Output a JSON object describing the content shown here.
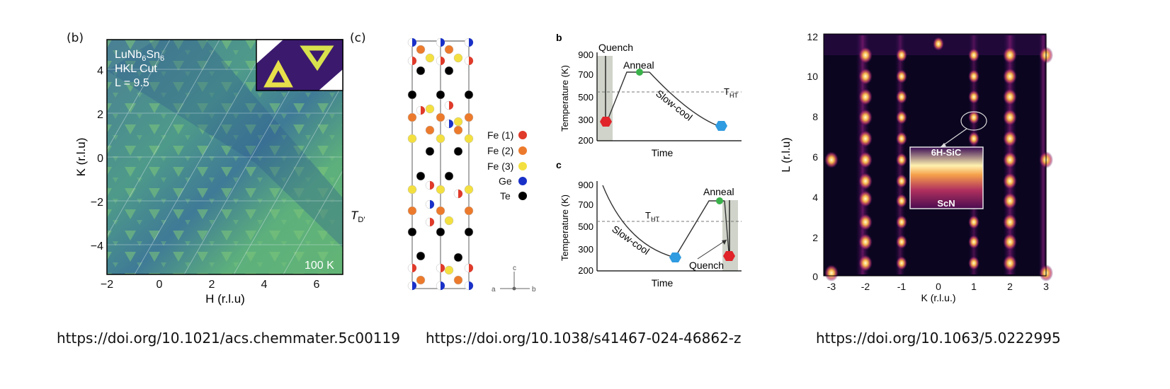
{
  "figure1": {
    "label": "(b)",
    "title_lines": [
      "LuNb6Sn6",
      "HKL Cut",
      "L = 9.5"
    ],
    "title_main": "LuNb",
    "title_sub1": "6",
    "title_mid": "Sn",
    "title_sub2": "6",
    "line2": "HKL Cut",
    "line3": "L = 9.5",
    "temperature": "100 K",
    "xlabel": "H (r.l.u)",
    "ylabel": "K (r.l.u)",
    "xticks": [
      "−2",
      "0",
      "2",
      "4",
      "6"
    ],
    "yticks": [
      "4",
      "2",
      "0",
      "−2",
      "−4"
    ],
    "side_label_main": "T",
    "side_label_sub": "D'",
    "doi": "https://doi.org/10.1021/acs.chemmater.5c00119"
  },
  "figure2": {
    "label": "(c)",
    "legend": [
      {
        "name": "Fe (1)",
        "color": "#e03a2a"
      },
      {
        "name": "Fe (2)",
        "color": "#ec7a2c"
      },
      {
        "name": "Fe (3)",
        "color": "#f3e040"
      },
      {
        "name": "Ge",
        "color": "#1930c8"
      },
      {
        "name": "Te",
        "color": "#000000"
      }
    ],
    "axis_c": "c",
    "axis_a": "a",
    "axis_b": "b",
    "panel_b": {
      "label": "b",
      "ylabel": "Temperature (K)",
      "xlabel": "Time",
      "yticks": [
        "900",
        "700",
        "500",
        "300",
        "200"
      ],
      "quench": "Quench",
      "anneal": "Anneal",
      "slowcool": "Slow-cool",
      "tht_main": "T",
      "tht_sub": "HT"
    },
    "panel_c": {
      "label": "c",
      "ylabel": "Temperature (K)",
      "xlabel": "Time",
      "yticks": [
        "900",
        "700",
        "500",
        "300",
        "200"
      ],
      "quench": "Quench",
      "anneal": "Anneal",
      "slowcool": "Slow-cool",
      "tht_main": "T",
      "tht_sub": "HT"
    },
    "doi": "https://doi.org/10.1038/s41467-024-46862-z"
  },
  "figure3": {
    "xlabel": "K (r.l.u.)",
    "ylabel": "L (r.l.u)",
    "xticks": [
      "-3",
      "-2",
      "-1",
      "0",
      "1",
      "2",
      "3"
    ],
    "yticks": [
      "12",
      "10",
      "8",
      "6",
      "4",
      "2",
      "0"
    ],
    "inset_top": "6H-SiC",
    "inset_bottom": "ScN",
    "doi": "https://doi.org/10.1063/5.0222995"
  },
  "colors": {
    "viridis_bg": "#4f9e86",
    "inferno_bg": "#0b0520",
    "accent_green": "#3ab14a",
    "accent_blue": "#2f9be0",
    "accent_red": "#e0242a"
  }
}
